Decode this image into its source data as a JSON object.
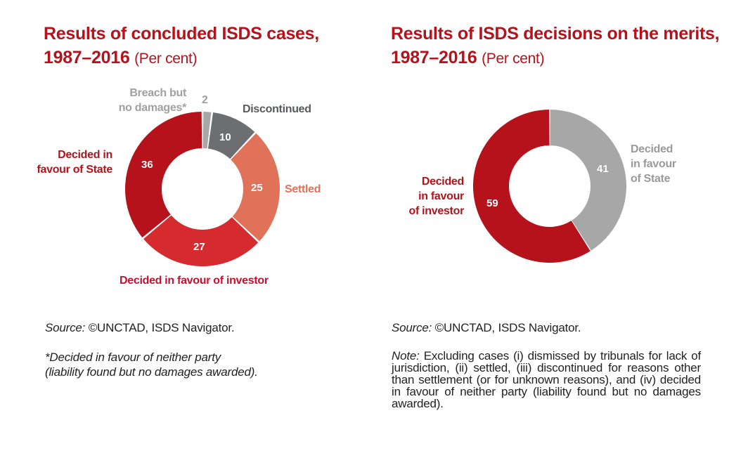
{
  "left": {
    "title_line1": "Results of concluded ISDS cases,",
    "title_line2": "1987–2016",
    "unit": "(Per cent)",
    "source_label": "Source:",
    "source_text": "©UNCTAD, ISDS Navigator.",
    "footnote_line1": "*Decided in favour of neither party",
    "footnote_line2": "(liability found but no damages awarded)."
  },
  "right": {
    "title_line1": "Results of ISDS decisions on the merits,",
    "title_line2": "1987–2016",
    "unit": "(Per cent)",
    "source_label": "Source:",
    "source_text": "©UNCTAD, ISDS Navigator.",
    "note_label": "Note:",
    "note_text": "Excluding cases (i) dismissed by tribunals for lack of jurisdiction, (ii) settled, (iii) discontinued for reasons other than settlement (or for unknown reasons), and (iv) decided in favour of neither party (liability found but no damages awarded)."
  },
  "chart_data": [
    {
      "type": "pie",
      "title": "Results of concluded ISDS cases, 1987–2016",
      "unit": "Per cent",
      "slices": [
        {
          "label": "Breach but no damages*",
          "label_lines": [
            "Breach but",
            "no damages*"
          ],
          "value": 2,
          "color": "#a7a7a7",
          "label_color": "#a0a0a0"
        },
        {
          "label": "Discontinued",
          "label_lines": [
            "Discontinued"
          ],
          "value": 10,
          "color": "#6d6e71",
          "label_color": "#58595b"
        },
        {
          "label": "Settled",
          "label_lines": [
            "Settled"
          ],
          "value": 25,
          "color": "#e07259",
          "label_color": "#e07259"
        },
        {
          "label": "Decided in favour of investor",
          "label_lines": [
            "Decided in favour of investor"
          ],
          "value": 27,
          "color": "#d52b2f",
          "label_color": "#c8102e"
        },
        {
          "label": "Decided in favour of State",
          "label_lines": [
            "Decided in",
            "favour of State"
          ],
          "value": 36,
          "color": "#b5121b",
          "label_color": "#b5121b"
        }
      ]
    },
    {
      "type": "pie",
      "title": "Results of ISDS decisions on the merits, 1987–2016",
      "unit": "Per cent",
      "slices": [
        {
          "label": "Decided in favour of State",
          "label_lines": [
            "Decided",
            "in favour",
            "of State"
          ],
          "value": 41,
          "color": "#a7a7a7",
          "label_color": "#9a9a9a"
        },
        {
          "label": "Decided in favour of investor",
          "label_lines": [
            "Decided",
            "in favour",
            "of investor"
          ],
          "value": 59,
          "color": "#b5121b",
          "label_color": "#b5121b"
        }
      ]
    }
  ]
}
